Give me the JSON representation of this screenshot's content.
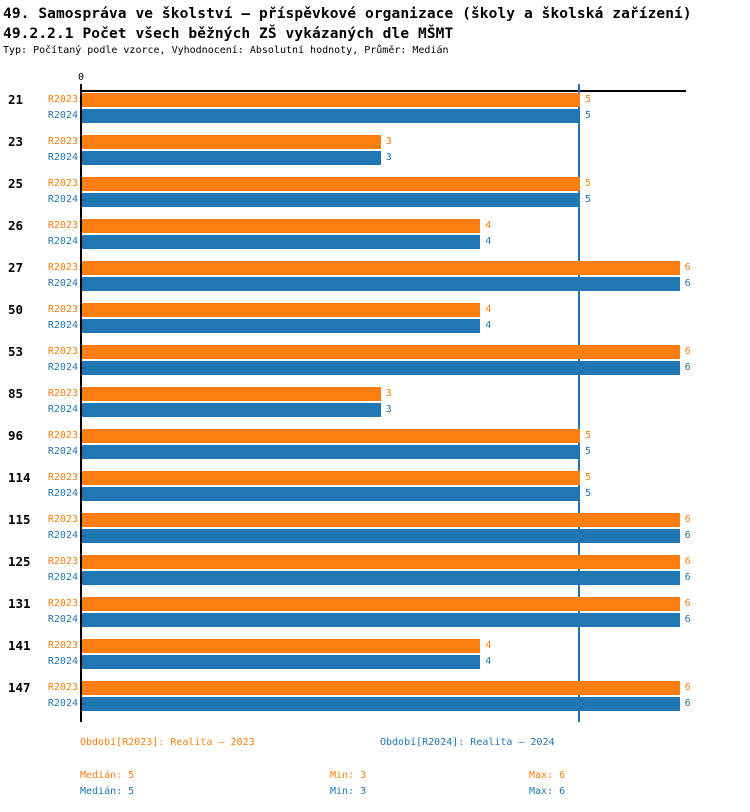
{
  "header": {
    "title1": "49. Samospráva ve školství – příspěvkové organizace (školy a školská zařízení)",
    "title2": "49.2.2.1 Počet všech běžných ZŠ vykázaných dle MŠMT",
    "subtitle": "Typ: Počítaný podle vzorce, Vyhodnocení: Absolutní hodnoty, Průměr: Medián"
  },
  "colors": {
    "r2023_orange": "#FB7E0E",
    "r2024_blue": "#2176B4",
    "axis_black": "#000000"
  },
  "chart_data": {
    "type": "bar",
    "orientation": "horizontal",
    "title": "49.2.2.1 Počet všech běžných ZŠ vykázaných dle MŠMT",
    "xlabel": "",
    "ylabel": "",
    "xlim": [
      0,
      6
    ],
    "origin_tick_label": "0",
    "grid": false,
    "legend_position": "bottom",
    "categories": [
      "21",
      "23",
      "25",
      "26",
      "27",
      "50",
      "53",
      "85",
      "96",
      "114",
      "115",
      "125",
      "131",
      "141",
      "147"
    ],
    "series": [
      {
        "name": "R2023",
        "color": "#FB7E0E",
        "values": [
          5,
          3,
          5,
          4,
          6,
          4,
          6,
          3,
          5,
          5,
          6,
          6,
          6,
          4,
          6
        ],
        "median": 5,
        "min": 3,
        "max": 6
      },
      {
        "name": "R2024",
        "color": "#2176B4",
        "values": [
          5,
          3,
          5,
          4,
          6,
          4,
          6,
          3,
          5,
          5,
          6,
          6,
          6,
          4,
          6
        ],
        "median": 5,
        "min": 3,
        "max": 6
      }
    ],
    "median_reference_line": {
      "value": 5,
      "color": "#2176B4"
    }
  },
  "legend": {
    "r2023": "Období[R2023]: Realita – 2023",
    "r2024": "Období[R2024]: Realita – 2024"
  },
  "stats": {
    "r2023": {
      "median": "Medián: 5",
      "min": "Min: 3",
      "max": "Max: 6"
    },
    "r2024": {
      "median": "Medián: 5",
      "min": "Min: 3",
      "max": "Max: 6"
    }
  }
}
